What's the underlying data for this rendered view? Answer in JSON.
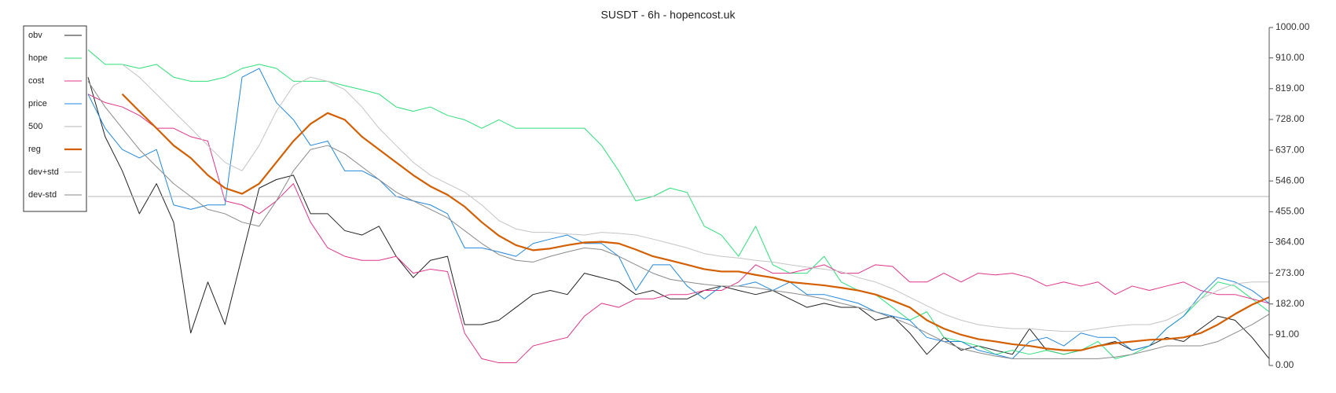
{
  "chart_data": {
    "type": "line",
    "title": "SUSDT - 6h - hopencost.uk",
    "ylim": [
      0,
      1000
    ],
    "yticks": [
      {
        "value": 0,
        "label": "0.00"
      },
      {
        "value": 91,
        "label": "91.00"
      },
      {
        "value": 182,
        "label": "182.00"
      },
      {
        "value": 273,
        "label": "273.00"
      },
      {
        "value": 364,
        "label": "364.00"
      },
      {
        "value": 455,
        "label": "455.00"
      },
      {
        "value": 546,
        "label": "546.00"
      },
      {
        "value": 637,
        "label": "637.00"
      },
      {
        "value": 728,
        "label": "728.00"
      },
      {
        "value": 819,
        "label": "819.00"
      },
      {
        "value": 910,
        "label": "910.00"
      },
      {
        "value": 1000,
        "label": "1000.00"
      }
    ],
    "y_axis_side": "right",
    "grid": false,
    "legend_position": "upper-left",
    "series": [
      {
        "name": "obv",
        "color": "#222222",
        "width": 1,
        "values": [
          853,
          677,
          576,
          449,
          538,
          424,
          96,
          247,
          121,
          323,
          525,
          550,
          563,
          449,
          449,
          399,
          386,
          412,
          323,
          260,
          311,
          323,
          121,
          121,
          134,
          172,
          210,
          222,
          210,
          273,
          260,
          247,
          210,
          222,
          197,
          197,
          222,
          235,
          222,
          210,
          222,
          197,
          172,
          184,
          172,
          172,
          134,
          146,
          96,
          33,
          83,
          45,
          58,
          45,
          33,
          109,
          45,
          33,
          45,
          58,
          71,
          45,
          58,
          83,
          71,
          109,
          146,
          134,
          83,
          20
        ]
      },
      {
        "name": "hope",
        "color": "#2ee07a",
        "width": 1,
        "values": [
          934,
          891,
          891,
          879,
          891,
          853,
          841,
          841,
          853,
          879,
          891,
          879,
          841,
          841,
          841,
          828,
          816,
          803,
          765,
          752,
          765,
          740,
          727,
          702,
          727,
          702,
          702,
          702,
          702,
          702,
          651,
          576,
          487,
          500,
          525,
          512,
          412,
          386,
          323,
          412,
          298,
          273,
          273,
          323,
          247,
          222,
          210,
          172,
          134,
          159,
          83,
          71,
          58,
          33,
          45,
          33,
          45,
          33,
          45,
          71,
          20,
          33,
          58,
          109,
          146,
          197,
          247,
          235,
          197,
          159
        ]
      },
      {
        "name": "cost",
        "color": "#e0338a",
        "width": 1,
        "values": [
          803,
          778,
          765,
          740,
          702,
          702,
          677,
          664,
          487,
          475,
          449,
          487,
          538,
          424,
          348,
          323,
          311,
          311,
          323,
          273,
          285,
          278,
          96,
          20,
          8,
          8,
          58,
          71,
          83,
          146,
          184,
          172,
          197,
          197,
          210,
          210,
          222,
          222,
          247,
          298,
          273,
          273,
          285,
          298,
          273,
          273,
          298,
          293,
          247,
          247,
          273,
          247,
          273,
          268,
          273,
          260,
          235,
          247,
          235,
          247,
          210,
          235,
          222,
          235,
          247,
          222,
          210,
          210,
          197,
          184
        ]
      },
      {
        "name": "price",
        "color": "#2288dd",
        "width": 1,
        "values": [
          803,
          702,
          639,
          614,
          639,
          475,
          462,
          475,
          475,
          853,
          879,
          778,
          727,
          651,
          664,
          576,
          576,
          550,
          500,
          487,
          475,
          449,
          348,
          348,
          336,
          323,
          361,
          374,
          386,
          361,
          361,
          323,
          222,
          298,
          298,
          235,
          197,
          235,
          235,
          247,
          222,
          247,
          210,
          210,
          197,
          184,
          159,
          146,
          134,
          83,
          71,
          71,
          45,
          33,
          20,
          71,
          83,
          58,
          96,
          83,
          83,
          45,
          58,
          109,
          146,
          210,
          260,
          247,
          222,
          184
        ]
      },
      {
        "name": "500",
        "color": "#b5b5b5",
        "width": 1,
        "values": [
          500,
          500,
          500,
          500,
          500,
          500,
          500,
          500,
          500,
          500,
          500,
          500,
          500,
          500,
          500,
          500,
          500,
          500,
          500,
          500,
          500,
          500,
          500,
          500,
          500,
          500,
          500,
          500,
          500,
          500,
          500,
          500,
          500,
          500,
          500,
          500,
          500,
          500,
          500,
          500,
          500,
          500,
          500,
          500,
          500,
          500,
          500,
          500,
          500,
          500,
          500,
          500,
          500,
          500,
          500,
          500,
          500,
          500,
          500,
          500,
          500,
          500,
          500,
          500,
          500,
          500,
          500,
          500,
          500,
          500
        ]
      },
      {
        "name": "reg",
        "color": "#d35f00",
        "width": 2.2,
        "values": [
          null,
          null,
          803,
          752,
          702,
          651,
          614,
          563,
          525,
          508,
          538,
          601,
          664,
          715,
          747,
          727,
          677,
          639,
          601,
          563,
          530,
          505,
          470,
          424,
          384,
          356,
          341,
          346,
          356,
          364,
          366,
          361,
          343,
          323,
          311,
          298,
          285,
          278,
          278,
          268,
          260,
          247,
          242,
          237,
          230,
          222,
          210,
          192,
          172,
          134,
          109,
          91,
          78,
          71,
          63,
          58,
          50,
          45,
          45,
          58,
          66,
          71,
          76,
          78,
          83,
          96,
          121,
          152,
          180,
          202
        ]
      },
      {
        "name": "dev+std",
        "color": "#c4c4c4",
        "width": 1,
        "values": [
          null,
          null,
          891,
          853,
          803,
          752,
          702,
          651,
          601,
          576,
          651,
          752,
          828,
          853,
          841,
          816,
          765,
          702,
          651,
          601,
          563,
          538,
          513,
          475,
          429,
          404,
          394,
          394,
          389,
          386,
          394,
          391,
          386,
          374,
          361,
          348,
          331,
          323,
          318,
          311,
          306,
          298,
          291,
          285,
          278,
          260,
          247,
          227,
          202,
          177,
          152,
          134,
          121,
          114,
          109,
          109,
          104,
          101,
          101,
          109,
          116,
          121,
          121,
          134,
          159,
          197,
          222,
          242,
          247,
          247
        ]
      },
      {
        "name": "dev-std",
        "color": "#8a8a8a",
        "width": 1,
        "values": [
          841,
          765,
          702,
          639,
          588,
          538,
          500,
          462,
          449,
          424,
          412,
          487,
          576,
          639,
          651,
          626,
          588,
          550,
          513,
          487,
          462,
          437,
          399,
          361,
          328,
          311,
          306,
          323,
          336,
          348,
          343,
          323,
          298,
          273,
          255,
          247,
          240,
          235,
          235,
          230,
          222,
          215,
          207,
          197,
          184,
          172,
          159,
          141,
          121,
          96,
          71,
          50,
          38,
          28,
          20,
          20,
          20,
          20,
          20,
          20,
          25,
          33,
          45,
          58,
          58,
          58,
          71,
          96,
          121,
          152
        ]
      }
    ]
  }
}
